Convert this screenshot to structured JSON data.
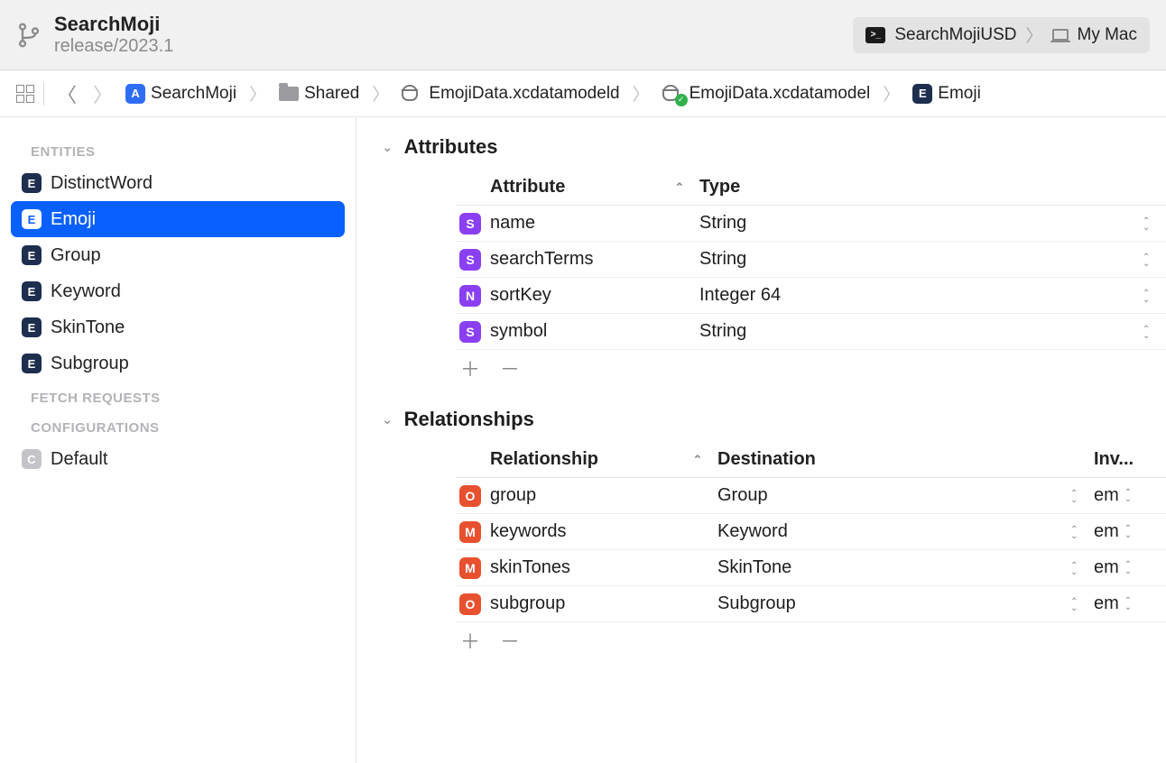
{
  "header": {
    "project_title": "SearchMoji",
    "branch_label": "release/2023.1",
    "scheme": {
      "name": "SearchMojiUSD",
      "device": "My Mac"
    }
  },
  "breadcrumb": {
    "items": [
      {
        "label": "SearchMoji",
        "icon": "app"
      },
      {
        "label": "Shared",
        "icon": "folder"
      },
      {
        "label": "EmojiData.xcdatamodeld",
        "icon": "datamodel-container"
      },
      {
        "label": "EmojiData.xcdatamodel",
        "icon": "datamodel"
      },
      {
        "label": "Emoji",
        "icon": "entity"
      }
    ]
  },
  "sidebar": {
    "section_entities": "ENTITIES",
    "entities": [
      {
        "label": "DistinctWord",
        "selected": false
      },
      {
        "label": "Emoji",
        "selected": true
      },
      {
        "label": "Group",
        "selected": false
      },
      {
        "label": "Keyword",
        "selected": false
      },
      {
        "label": "SkinTone",
        "selected": false
      },
      {
        "label": "Subgroup",
        "selected": false
      }
    ],
    "section_fetch": "FETCH REQUESTS",
    "section_config": "CONFIGURATIONS",
    "config_default": "Default"
  },
  "main": {
    "attributes": {
      "title": "Attributes",
      "columns": {
        "name": "Attribute",
        "type": "Type"
      },
      "rows": [
        {
          "icon": "S",
          "name": "name",
          "type": "String"
        },
        {
          "icon": "S",
          "name": "searchTerms",
          "type": "String"
        },
        {
          "icon": "N",
          "name": "sortKey",
          "type": "Integer 64"
        },
        {
          "icon": "S",
          "name": "symbol",
          "type": "String"
        }
      ]
    },
    "relationships": {
      "title": "Relationships",
      "columns": {
        "name": "Relationship",
        "dest": "Destination",
        "inv": "Inv..."
      },
      "rows": [
        {
          "icon": "O",
          "name": "group",
          "dest": "Group",
          "inv": "em"
        },
        {
          "icon": "M",
          "name": "keywords",
          "dest": "Keyword",
          "inv": "em"
        },
        {
          "icon": "M",
          "name": "skinTones",
          "dest": "SkinTone",
          "inv": "em"
        },
        {
          "icon": "O",
          "name": "subgroup",
          "dest": "Subgroup",
          "inv": "em"
        }
      ]
    }
  },
  "colors": {
    "selection": "#0a60ff",
    "entity_badge": "#1d2e4e",
    "attr_purple": "#8a3ff3",
    "rel_orange": "#e8512f",
    "muted": "#8a8a8e",
    "titlebar_bg": "#f1f1f1"
  }
}
